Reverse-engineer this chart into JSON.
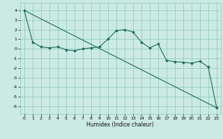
{
  "title": "",
  "xlabel": "Humidex (Indice chaleur)",
  "ylabel": "",
  "bg_color": "#cceae4",
  "grid_color": "#88c4b8",
  "line_color": "#1a6b5a",
  "xlim": [
    -0.5,
    23.5
  ],
  "ylim": [
    -6.8,
    4.8
  ],
  "yticks": [
    -6,
    -5,
    -4,
    -3,
    -2,
    -1,
    0,
    1,
    2,
    3,
    4
  ],
  "xticks": [
    0,
    1,
    2,
    3,
    4,
    5,
    6,
    7,
    8,
    9,
    10,
    11,
    12,
    13,
    14,
    15,
    16,
    17,
    18,
    19,
    20,
    21,
    22,
    23
  ],
  "line1_x": [
    0,
    1,
    2,
    3,
    4,
    5,
    6,
    7,
    8,
    9,
    10,
    11,
    12,
    13,
    14,
    15,
    16,
    17,
    18,
    19,
    20,
    21,
    22,
    23
  ],
  "line1_y": [
    4.0,
    0.7,
    0.2,
    0.1,
    0.2,
    -0.1,
    -0.2,
    0.0,
    0.1,
    0.2,
    1.0,
    1.9,
    2.0,
    1.75,
    0.7,
    0.1,
    0.5,
    -1.2,
    -1.35,
    -1.4,
    -1.5,
    -1.3,
    -1.9,
    -6.15
  ],
  "line2_x": [
    0,
    23
  ],
  "line2_y": [
    4.0,
    -6.15
  ],
  "xlabel_fontsize": 5.5,
  "tick_fontsize": 4.5,
  "marker_size": 2.0
}
